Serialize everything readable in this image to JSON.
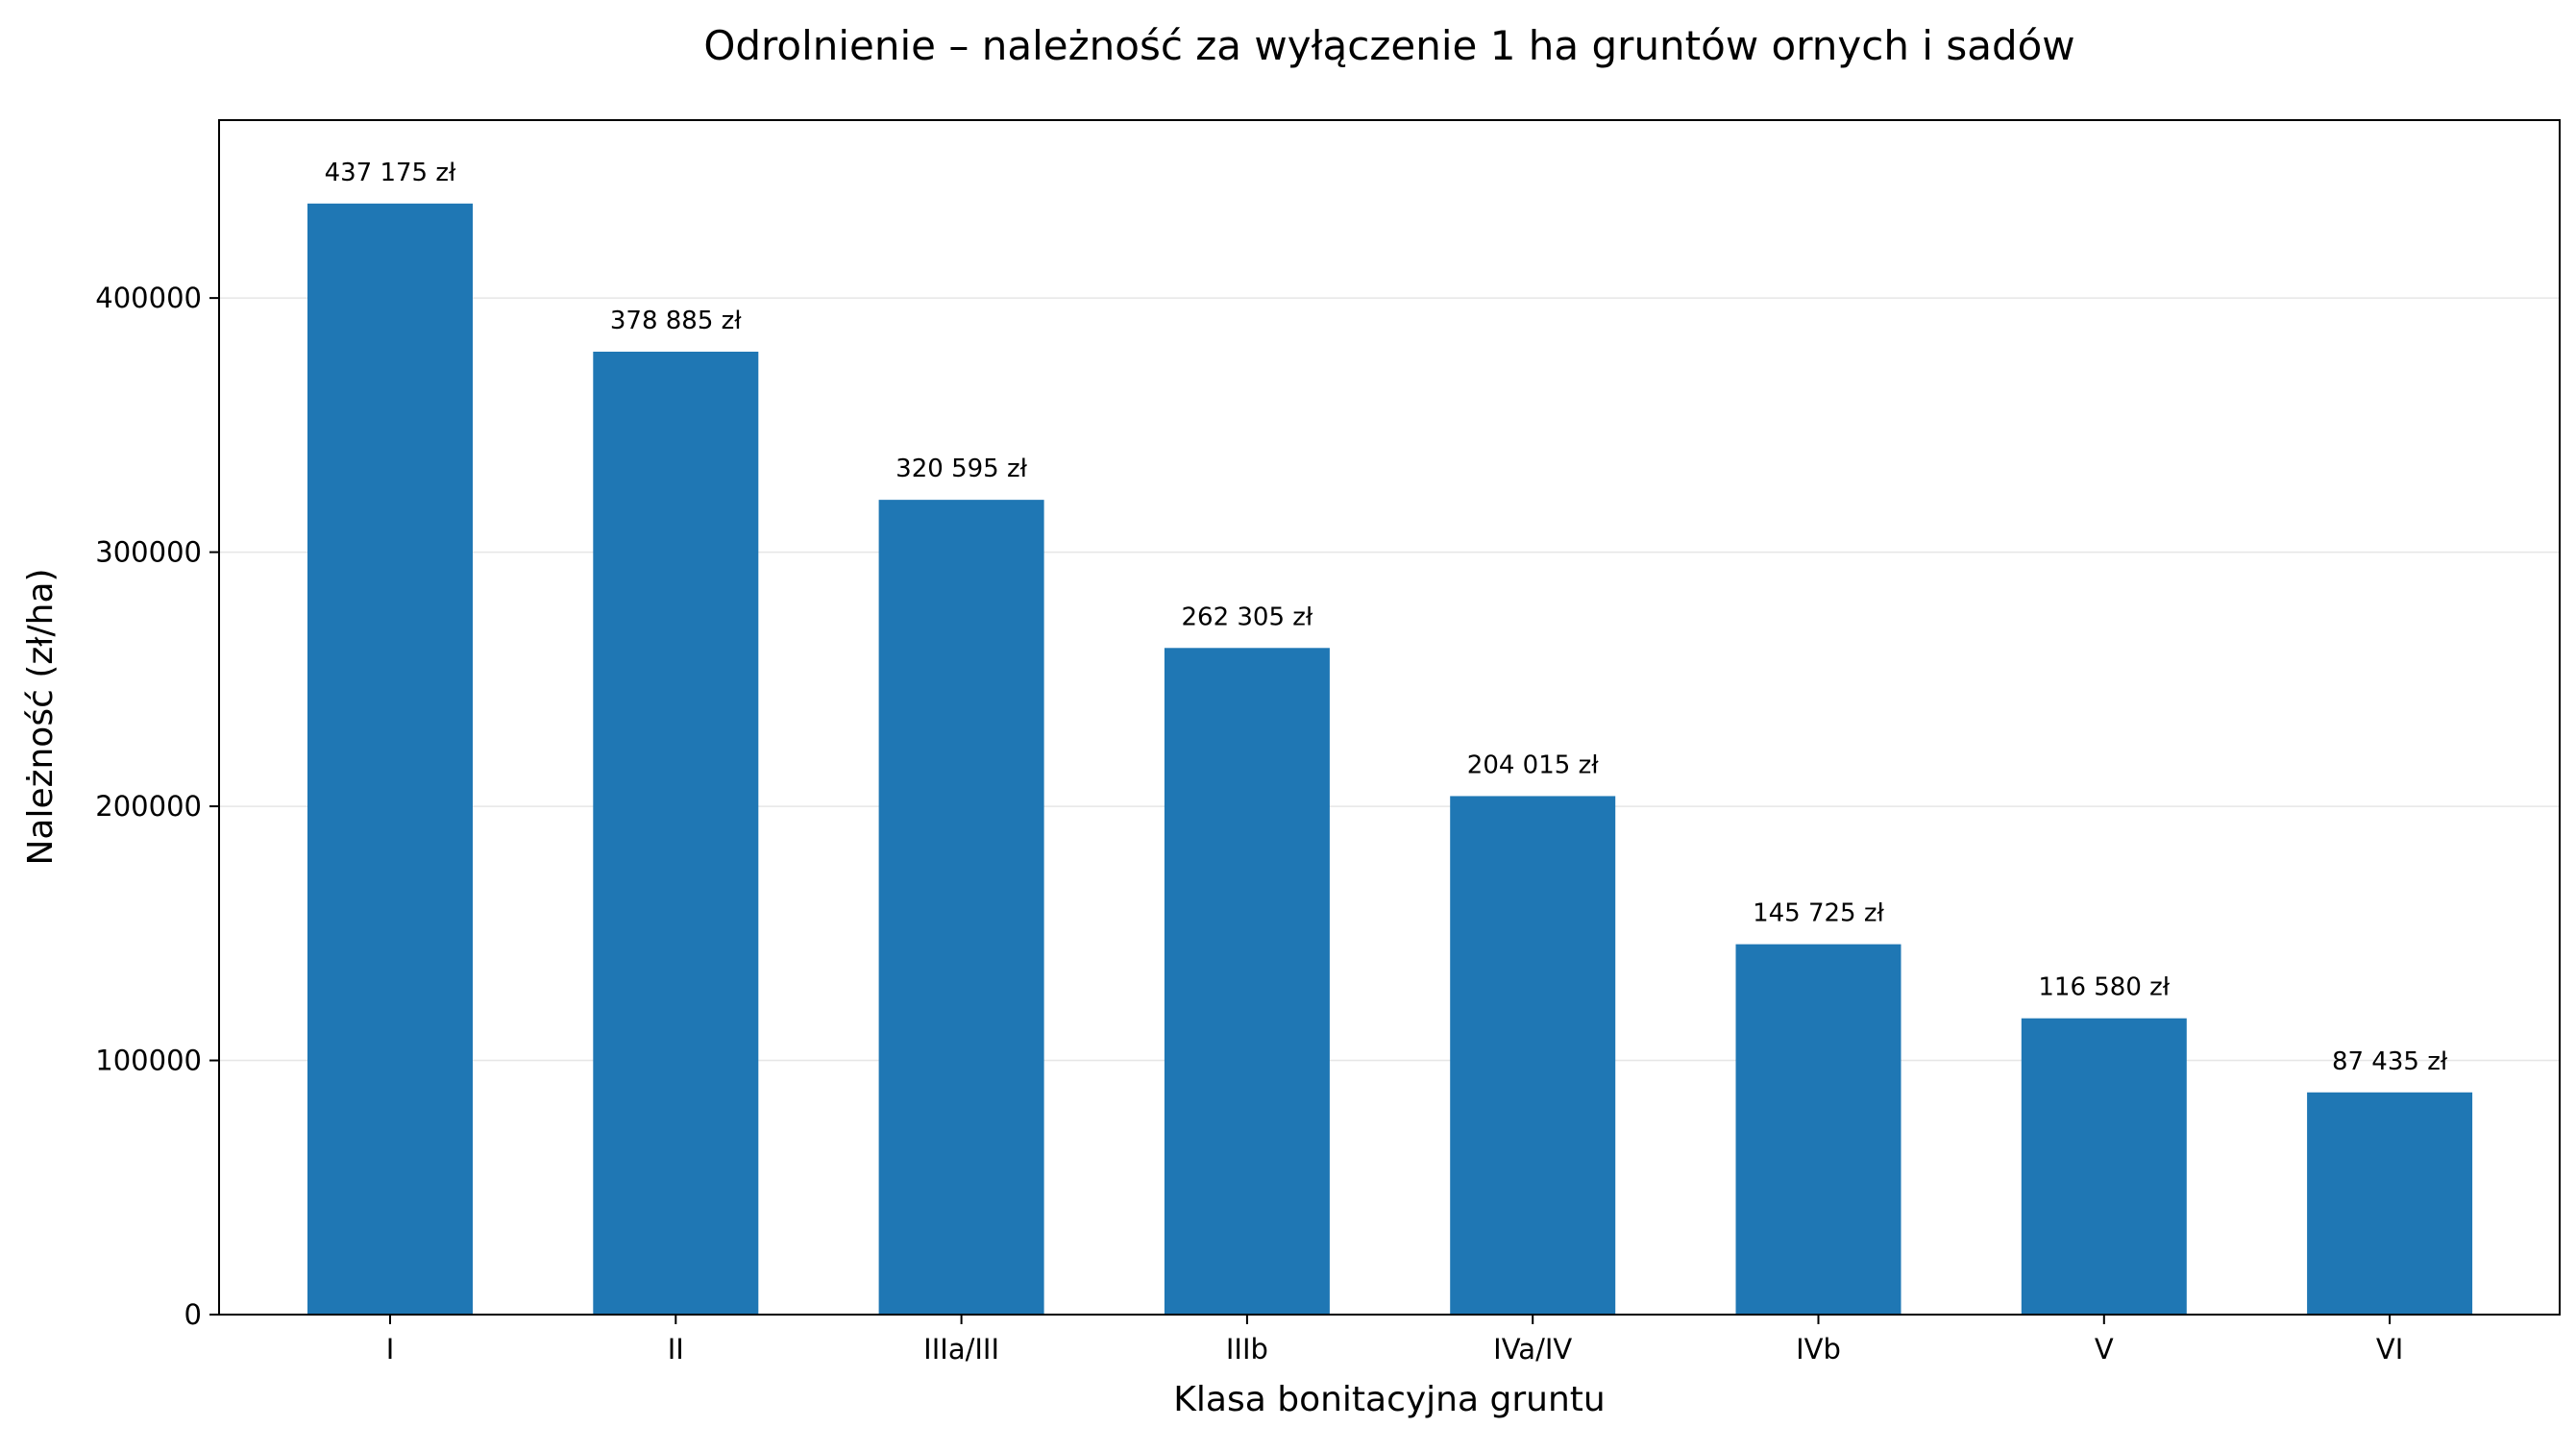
{
  "chart_data": {
    "type": "bar",
    "title": "Odrolnienie – należność za wyłączenie 1 ha gruntów ornych i sadów",
    "xlabel": "Klasa bonitacyjna gruntu",
    "ylabel": "Należność (zł/ha)",
    "categories": [
      "I",
      "II",
      "IIIa/III",
      "IIIb",
      "IVa/IV",
      "IVb",
      "V",
      "VI"
    ],
    "values": [
      437175,
      378885,
      320595,
      262305,
      204015,
      145725,
      116580,
      87435
    ],
    "value_labels": [
      "437 175 zł",
      "378 885 zł",
      "320 595 zł",
      "262 305 zł",
      "204 015 zł",
      "145 725 zł",
      "116 580 zł",
      "87 435 zł"
    ],
    "yticks": [
      0,
      100000,
      200000,
      300000,
      400000
    ],
    "ytick_labels": [
      "0",
      "100000",
      "200000",
      "300000",
      "400000"
    ],
    "ylim": [
      0,
      470000
    ],
    "grid": "y",
    "bar_color": "#1f77b4"
  }
}
